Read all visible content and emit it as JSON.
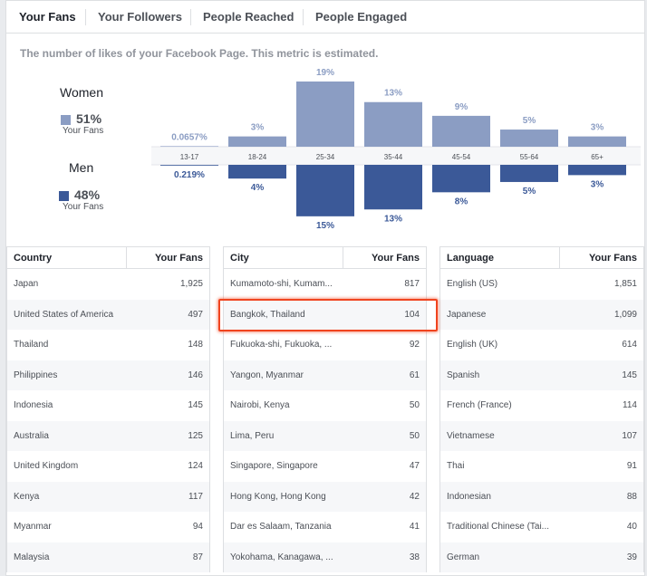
{
  "tabs": [
    {
      "label": "Your Fans",
      "active": true
    },
    {
      "label": "Your Followers",
      "active": false
    },
    {
      "label": "People Reached",
      "active": false
    },
    {
      "label": "People Engaged",
      "active": false
    }
  ],
  "description": "The number of likes of your Facebook Page. This metric is estimated.",
  "gender": {
    "women": {
      "label": "Women",
      "pct": "51%",
      "sub": "Your Fans",
      "color": "#8b9dc3"
    },
    "men": {
      "label": "Men",
      "pct": "48%",
      "sub": "Your Fans",
      "color": "#3b5998"
    }
  },
  "chart_data": {
    "type": "bar",
    "categories": [
      "13-17",
      "18-24",
      "25-34",
      "35-44",
      "45-54",
      "55-64",
      "65+"
    ],
    "series": [
      {
        "name": "Women",
        "values": [
          0.0657,
          3,
          19,
          13,
          9,
          5,
          3
        ],
        "labels": [
          "0.0657%",
          "3%",
          "19%",
          "13%",
          "9%",
          "5%",
          "3%"
        ],
        "color": "#8b9dc3"
      },
      {
        "name": "Men",
        "values": [
          0.219,
          4,
          15,
          13,
          8,
          5,
          3
        ],
        "labels": [
          "0.219%",
          "4%",
          "15%",
          "13%",
          "8%",
          "5%",
          "3%"
        ],
        "color": "#3b5998"
      }
    ],
    "ylim": [
      0,
      19
    ]
  },
  "tables": {
    "country": {
      "headers": [
        "Country",
        "Your Fans"
      ],
      "rows": [
        [
          "Japan",
          "1,925"
        ],
        [
          "United States of America",
          "497"
        ],
        [
          "Thailand",
          "148"
        ],
        [
          "Philippines",
          "146"
        ],
        [
          "Indonesia",
          "145"
        ],
        [
          "Australia",
          "125"
        ],
        [
          "United Kingdom",
          "124"
        ],
        [
          "Kenya",
          "117"
        ],
        [
          "Myanmar",
          "94"
        ],
        [
          "Malaysia",
          "87"
        ]
      ]
    },
    "city": {
      "headers": [
        "City",
        "Your Fans"
      ],
      "rows": [
        [
          "Kumamoto-shi, Kumam...",
          "817"
        ],
        [
          "Bangkok, Thailand",
          "104"
        ],
        [
          "Fukuoka-shi, Fukuoka, ...",
          "92"
        ],
        [
          "Yangon, Myanmar",
          "61"
        ],
        [
          "Nairobi, Kenya",
          "50"
        ],
        [
          "Lima, Peru",
          "50"
        ],
        [
          "Singapore, Singapore",
          "47"
        ],
        [
          "Hong Kong, Hong Kong",
          "42"
        ],
        [
          "Dar es Salaam, Tanzania",
          "41"
        ],
        [
          "Yokohama, Kanagawa, ...",
          "38"
        ]
      ]
    },
    "language": {
      "headers": [
        "Language",
        "Your Fans"
      ],
      "rows": [
        [
          "English (US)",
          "1,851"
        ],
        [
          "Japanese",
          "1,099"
        ],
        [
          "English (UK)",
          "614"
        ],
        [
          "Spanish",
          "145"
        ],
        [
          "French (France)",
          "114"
        ],
        [
          "Vietnamese",
          "107"
        ],
        [
          "Thai",
          "91"
        ],
        [
          "Indonesian",
          "88"
        ],
        [
          "Traditional Chinese (Tai...",
          "40"
        ],
        [
          "German",
          "39"
        ]
      ]
    }
  }
}
